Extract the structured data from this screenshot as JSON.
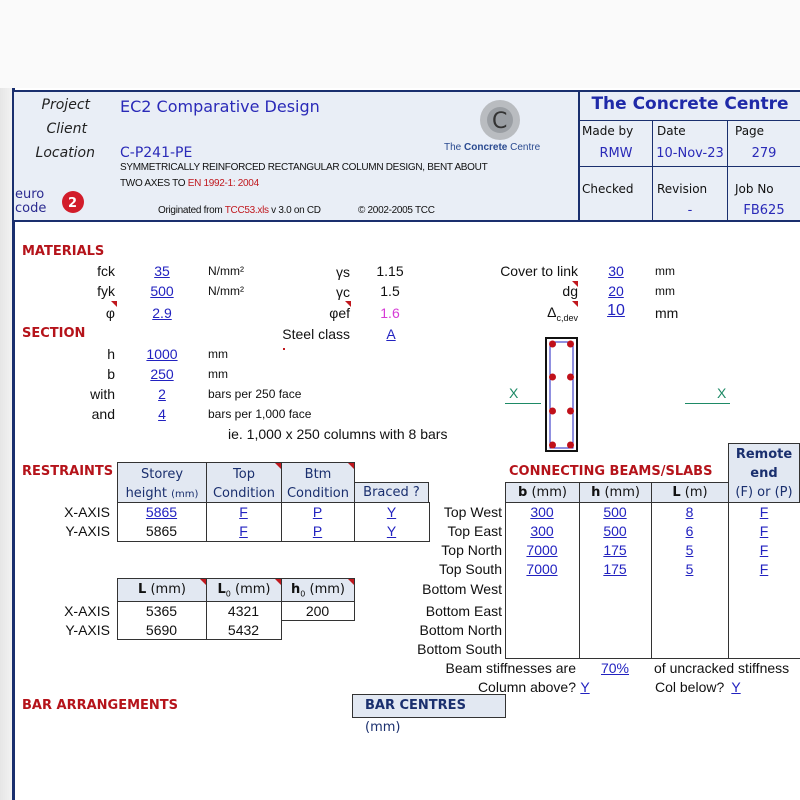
{
  "header": {
    "project_label": "Project",
    "client_label": "Client",
    "location_label": "Location",
    "project": "EC2 Comparative Design",
    "client": "",
    "location": "C-P241-PE",
    "description_line1": "SYMMETRICALLY REINFORCED RECTANGULAR COLUMN DESIGN, BENT ABOUT",
    "description_line2_prefix": "TWO AXES TO ",
    "description_line2_code": "EN 1992-1: 2004",
    "originated_prefix": "Originated from ",
    "originated_file": "TCC53.xls",
    "originated_suffix": " v 3.0 on CD",
    "copyright": "© 2002-2005 TCC",
    "logo_text_pre": "The ",
    "logo_text_bold": "Concrete",
    "logo_text_post": " Centre",
    "eurocode_logo": "euro code 2",
    "company": "The Concrete Centre",
    "made_by_label": "Made by",
    "made_by": "RMW",
    "date_label": "Date",
    "date": "10-Nov-23",
    "page_label": "Page",
    "page": "279",
    "checked_label": "Checked",
    "checked": "",
    "revision_label": "Revision",
    "revision": "-",
    "job_no_label": "Job No",
    "job_no": "FB625"
  },
  "materials": {
    "title": "MATERIALS",
    "fck_label": "fck",
    "fck": "35",
    "fck_unit": "N/mm²",
    "fyk_label": "fyk",
    "fyk": "500",
    "fyk_unit": "N/mm²",
    "phi_label": "φ",
    "phi": "2.9",
    "gs_label": "γs",
    "gs": "1.15",
    "gc_label": "γc",
    "gc": "1.5",
    "phief_label": "φef",
    "phief": "1.6",
    "cover_label": "Cover to link",
    "cover": "30",
    "cover_unit": "mm",
    "dg_label": "dg",
    "dg": "20",
    "dg_unit": "mm",
    "dev_label": "Δ",
    "dev_sub": "c,dev",
    "dev": "10",
    "dev_unit": "mm",
    "phief_color": "#d63bd6"
  },
  "section": {
    "title": "SECTION",
    "steel_class_label": "Steel class",
    "steel_class": "A",
    "h_label": "h",
    "h": "1000",
    "h_unit": "mm",
    "b_label": "b",
    "b": "250",
    "b_unit": "mm",
    "with_label": "with",
    "with": "2",
    "with_text": "bars per 250 face",
    "and_label": "and",
    "and": "4",
    "and_text": "bars per 1,000 face",
    "summary": "ie. 1,000 x 250 columns with 8 bars",
    "axis_left": "X",
    "axis_right": "X"
  },
  "restraints": {
    "title": "RESTRAINTS",
    "headers": {
      "storey1": "Storey",
      "storey2": "height",
      "storey_unit": "(mm)",
      "top1": "Top",
      "top2": "Condition",
      "btm1": "Btm",
      "btm2": "Condition",
      "braced": "Braced ?"
    },
    "rows": [
      {
        "axis": "X-AXIS",
        "height": "5865",
        "top": "F",
        "btm": "P",
        "braced": "Y"
      },
      {
        "axis": "Y-AXIS",
        "height": "5865",
        "top": "F",
        "btm": "P",
        "braced": "Y"
      }
    ],
    "lengths_headers": {
      "L": "L",
      "L_unit": " (mm)",
      "L0": "L",
      "L0_sub": "0",
      "L0_unit": " (mm)",
      "h0": "h",
      "h0_sub": "0",
      "h0_unit": " (mm)"
    },
    "lengths": [
      {
        "axis": "X-AXIS",
        "L": "5365",
        "L0": "4321",
        "h0": "200"
      },
      {
        "axis": "Y-AXIS",
        "L": "5690",
        "L0": "5432"
      }
    ]
  },
  "beams": {
    "title": "CONNECTING BEAMS/SLABS",
    "headers": {
      "b": "b",
      "b_unit": " (mm)",
      "h": "h",
      "h_unit": " (mm)",
      "L": "L",
      "L_unit": " (m)",
      "remote1": "Remote",
      "remote2": "end",
      "remote3": "(F) or (P)"
    },
    "rows": [
      {
        "label": "Top West",
        "b": "300",
        "h": "500",
        "L": "8",
        "end": "F"
      },
      {
        "label": "Top East",
        "b": "300",
        "h": "500",
        "L": "6",
        "end": "F"
      },
      {
        "label": "Top North",
        "b": "7000",
        "h": "175",
        "L": "5",
        "end": "F"
      },
      {
        "label": "Top South",
        "b": "7000",
        "h": "175",
        "L": "5",
        "end": "F"
      },
      {
        "label": "Bottom West"
      },
      {
        "label": "Bottom East"
      },
      {
        "label": "Bottom North"
      },
      {
        "label": "Bottom South"
      }
    ],
    "stiffness_label": "Beam stiffnesses are",
    "stiffness": "70%",
    "stiffness_suffix": "of uncracked stiffness",
    "col_above_label": "Column above?",
    "col_above": "Y",
    "col_below_label": "Col below?",
    "col_below": "Y"
  },
  "bars": {
    "title": "BAR ARRANGEMENTS",
    "centres_label": "BAR CENTRES",
    "centres_unit": " (mm)"
  }
}
